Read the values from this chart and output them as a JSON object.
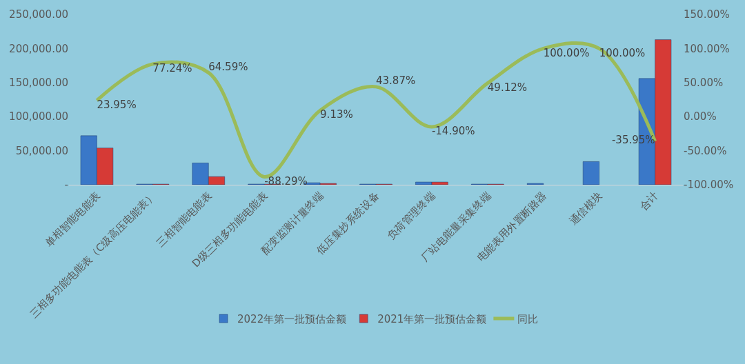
{
  "chart_data": {
    "type": "bar",
    "categories": [
      "单相智能电能表",
      "三相多功能电能表（C级高压电能表）",
      "三相智能电能表",
      "D级三相多功能电能表",
      "配变监测计量终端",
      "低压集抄系统设备",
      "负荷管理终端",
      "厂站电能量采集终端",
      "电能表用外置断路器",
      "通信模块",
      "合计"
    ],
    "series": [
      {
        "name": "2022年第一批预估金额",
        "color": "#3a78c8",
        "values": [
          72000,
          1000,
          32000,
          1000,
          3000,
          1000,
          4000,
          1000,
          2000,
          34000,
          156000
        ]
      },
      {
        "name": "2021年第一批预估金额",
        "color": "#d63a36",
        "values": [
          54000,
          1000,
          12000,
          1000,
          2000,
          1000,
          4000,
          1000,
          null,
          null,
          213000
        ]
      },
      {
        "name": "同比",
        "type": "line",
        "axis": "y2",
        "color": "#9bbb59",
        "values": [
          23.95,
          77.24,
          64.59,
          -88.29,
          9.13,
          43.87,
          -14.9,
          49.12,
          100.0,
          100.0,
          -35.95
        ],
        "value_labels": [
          "23.95%",
          "77.24%",
          "64.59%",
          "-88.29%",
          "9.13%",
          "43.87%",
          "-14.90%",
          "49.12%",
          "100.00%",
          "100.00%",
          "-35.95%"
        ]
      }
    ],
    "ylim": [
      0,
      250000
    ],
    "yticks": [
      {
        "value": 0,
        "label": "-"
      },
      {
        "value": 50000,
        "label": "50,000.00"
      },
      {
        "value": 100000,
        "label": "100,000.00"
      },
      {
        "value": 150000,
        "label": "150,000.00"
      },
      {
        "value": 200000,
        "label": "200,000.00"
      },
      {
        "value": 250000,
        "label": "250,000.00"
      }
    ],
    "y2lim": [
      -100,
      150
    ],
    "y2ticks": [
      {
        "value": -100,
        "label": "-100.00%"
      },
      {
        "value": -50,
        "label": "-50.00%"
      },
      {
        "value": 0,
        "label": "0.00%"
      },
      {
        "value": 50,
        "label": "50.00%"
      },
      {
        "value": 100,
        "label": "100.00%"
      },
      {
        "value": 150,
        "label": "150.00%"
      }
    ],
    "grid": false,
    "legend": "bottom"
  }
}
